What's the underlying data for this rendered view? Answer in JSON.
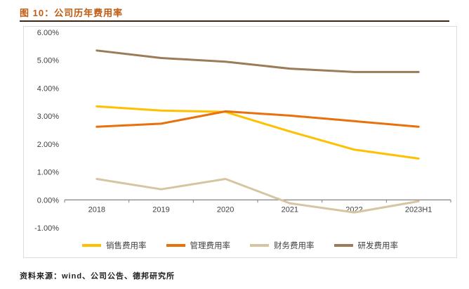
{
  "header": {
    "title": "图 10：公司历年费用率"
  },
  "footer": {
    "source": "资料来源：wind、公司公告、德邦研究所"
  },
  "colors": {
    "title": "#C05A11",
    "title_rule": "#44250F",
    "axis": "#808080",
    "tick_text": "#404040"
  },
  "chart_data": {
    "type": "line",
    "categories": [
      "2018",
      "2019",
      "2020",
      "2021",
      "2022",
      "2023H1"
    ],
    "series": [
      {
        "id": "sales",
        "name": "销售费用率",
        "color": "#FFC000",
        "values": [
          3.35,
          3.2,
          3.15,
          2.45,
          1.8,
          1.48
        ]
      },
      {
        "id": "management",
        "name": "管理费用率",
        "color": "#E8710D",
        "values": [
          2.62,
          2.73,
          3.17,
          3.02,
          2.82,
          2.62
        ]
      },
      {
        "id": "finance",
        "name": "财务费用率",
        "color": "#D5C5A1",
        "values": [
          0.75,
          0.38,
          0.75,
          -0.12,
          -0.45,
          -0.05
        ]
      },
      {
        "id": "rd",
        "name": "研发费用率",
        "color": "#9B7B59",
        "values": [
          5.35,
          5.08,
          4.95,
          4.7,
          4.58,
          4.58
        ]
      }
    ],
    "title": "公司历年费用率",
    "xlabel": "",
    "ylabel": "",
    "ylim": [
      -1,
      6
    ],
    "ytick_step": 1,
    "ytick_labels": [
      "6.00%",
      "5.00%",
      "4.00%",
      "3.00%",
      "2.00%",
      "1.00%",
      "0.00%",
      "-1.00%"
    ],
    "grid": false,
    "legend_position": "bottom"
  }
}
